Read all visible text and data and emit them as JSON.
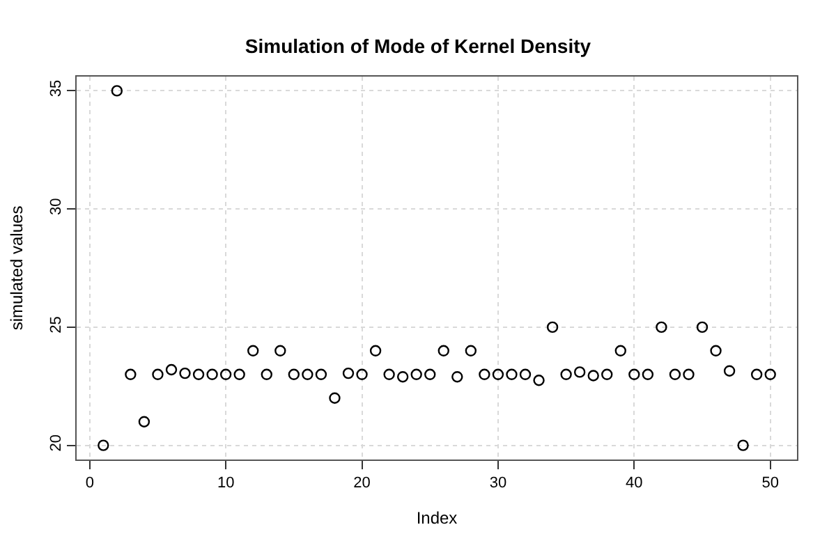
{
  "chart_data": {
    "type": "scatter",
    "title": "Simulation of Mode of Kernel Density",
    "xlabel": "Index",
    "ylabel": "simulated values",
    "x": [
      1,
      2,
      3,
      4,
      5,
      6,
      7,
      8,
      9,
      10,
      11,
      12,
      13,
      14,
      15,
      16,
      17,
      18,
      19,
      20,
      21,
      22,
      23,
      24,
      25,
      26,
      27,
      28,
      29,
      30,
      31,
      32,
      33,
      34,
      35,
      36,
      37,
      38,
      39,
      40,
      41,
      42,
      43,
      44,
      45,
      46,
      47,
      48,
      49,
      50
    ],
    "values": [
      20,
      35,
      23,
      21,
      23,
      23.2,
      23.05,
      23,
      23,
      23,
      23,
      24,
      23,
      24,
      23,
      23,
      23,
      22,
      23.05,
      23,
      24,
      23,
      22.9,
      23,
      23,
      24,
      22.9,
      24,
      23,
      23,
      23,
      23,
      22.75,
      25,
      23,
      23.1,
      22.95,
      23,
      24,
      23,
      23,
      25,
      23,
      23,
      25,
      24,
      23.15,
      20,
      23,
      23
    ],
    "color": "#000000",
    "marker": "circle",
    "xlim": [
      -0.96,
      51.96
    ],
    "ylim": [
      19.4,
      35.6
    ],
    "xticks": [
      0,
      10,
      20,
      30,
      40,
      50
    ],
    "yticks": [
      20,
      25,
      30,
      35
    ],
    "grid": true
  }
}
